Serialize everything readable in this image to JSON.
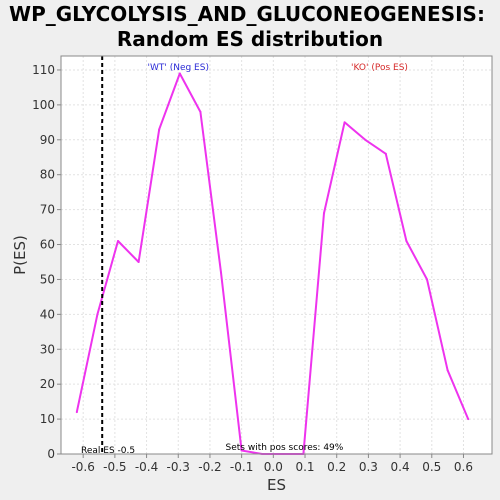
{
  "chart_data": {
    "type": "line",
    "title": "WP_GLYCOLYSIS_AND_GLUCONEOGENESIS:",
    "subtitle": "Random ES distribution",
    "xlabel": "ES",
    "ylabel": "P(ES)",
    "xlim": [
      -0.67,
      0.69
    ],
    "ylim": [
      0,
      114
    ],
    "x_ticks": [
      "-0.6",
      "-0.5",
      "-0.4",
      "-0.3",
      "-0.2",
      "-0.1",
      "0.0",
      "0.1",
      "0.2",
      "0.3",
      "0.4",
      "0.5",
      "0.6"
    ],
    "x_tick_values": [
      -0.6,
      -0.5,
      -0.4,
      -0.3,
      -0.2,
      -0.1,
      0.0,
      0.1,
      0.2,
      0.3,
      0.4,
      0.5,
      0.6
    ],
    "y_ticks": [
      "0",
      "10",
      "20",
      "30",
      "40",
      "50",
      "60",
      "70",
      "80",
      "90",
      "100",
      "110"
    ],
    "y_tick_values": [
      0,
      10,
      20,
      30,
      40,
      50,
      60,
      70,
      80,
      90,
      100,
      110
    ],
    "grid": true,
    "series": [
      {
        "color": "#ee33ee",
        "x": [
          -0.62,
          -0.555,
          -0.49,
          -0.425,
          -0.36,
          -0.295,
          -0.23,
          -0.165,
          -0.1,
          -0.035,
          0.03,
          0.095,
          0.16,
          0.225,
          0.29,
          0.355,
          0.42,
          0.485,
          0.55,
          0.615
        ],
        "y": [
          12,
          40,
          61,
          55,
          93,
          109,
          98,
          52,
          1,
          0,
          0,
          0,
          69,
          95,
          90,
          86,
          61,
          50,
          24,
          10
        ]
      }
    ],
    "real_es": -0.54,
    "annotations": {
      "neg_label": "'WT' (Neg ES)",
      "pos_label": "'KO' (Pos ES)",
      "real_es_label": "Real ES -0.5",
      "pos_scores_label": "Sets with pos scores: 49%"
    },
    "colors": {
      "neg": "#2b2bd6",
      "pos": "#d62b2b",
      "plot_bg": "#ffffff",
      "page_bg": "#efefef"
    }
  }
}
